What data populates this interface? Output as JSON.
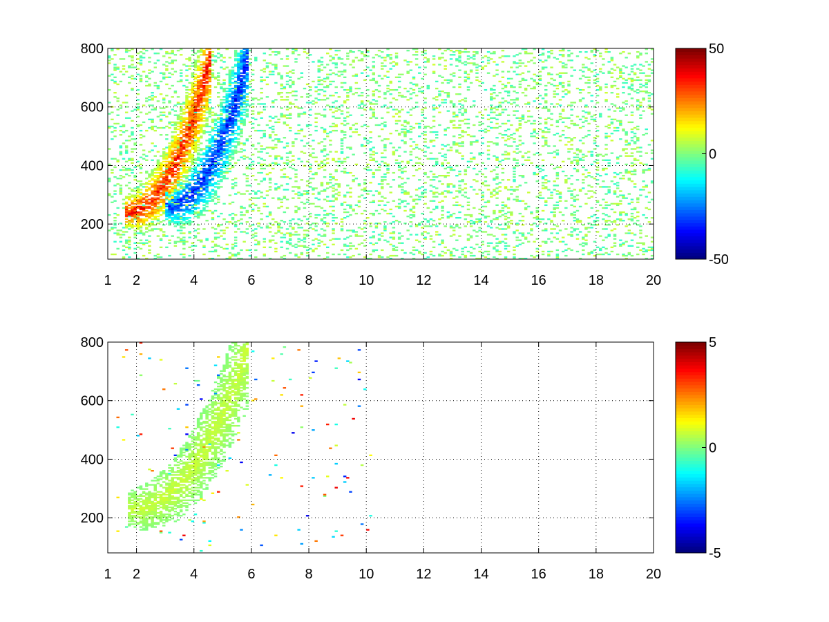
{
  "chart_data": [
    {
      "type": "heatmap",
      "title": "",
      "xlabel": "",
      "ylabel": "",
      "xlim": [
        1,
        20
      ],
      "ylim": [
        80,
        800
      ],
      "xticks": [
        1,
        2,
        4,
        6,
        8,
        10,
        12,
        14,
        16,
        18,
        20
      ],
      "xtick_labels": [
        "1",
        "2",
        "4",
        "6",
        "8",
        "10",
        "12",
        "14",
        "16",
        "18",
        "20"
      ],
      "yticks": [
        200,
        400,
        600,
        800
      ],
      "ytick_labels": [
        "200",
        "400",
        "600",
        "800"
      ],
      "grid": true,
      "colormap": "jet",
      "clim": [
        -50,
        50
      ],
      "colorbar_ticks": [
        50,
        0,
        -50
      ],
      "colorbar_tick_labels": [
        "50",
        "0",
        "-50"
      ],
      "features": [
        {
          "kind": "ridge",
          "value": 40,
          "x_range": [
            1.6,
            4.6
          ],
          "y_range": [
            240,
            780
          ],
          "note": "positive (red/orange) curved band"
        },
        {
          "kind": "ridge",
          "value": -40,
          "x_range": [
            3.0,
            5.9
          ],
          "y_range": [
            260,
            780
          ],
          "note": "negative (blue) curved band"
        },
        {
          "kind": "scatter_noise",
          "value_range": [
            -8,
            8
          ],
          "x_range": [
            1,
            20
          ],
          "y_range": [
            80,
            800
          ]
        }
      ]
    },
    {
      "type": "heatmap",
      "title": "",
      "xlabel": "",
      "ylabel": "",
      "xlim": [
        1,
        20
      ],
      "ylim": [
        80,
        800
      ],
      "xticks": [
        1,
        2,
        4,
        6,
        8,
        10,
        12,
        14,
        16,
        18,
        20
      ],
      "xtick_labels": [
        "1",
        "2",
        "4",
        "6",
        "8",
        "10",
        "12",
        "14",
        "16",
        "18",
        "20"
      ],
      "yticks": [
        200,
        400,
        600,
        800
      ],
      "ytick_labels": [
        "200",
        "400",
        "600",
        "800"
      ],
      "grid": true,
      "colormap": "jet",
      "clim": [
        -5,
        5
      ],
      "colorbar_ticks": [
        5,
        0,
        -5
      ],
      "colorbar_tick_labels": [
        "5",
        "0",
        "-5"
      ],
      "features": [
        {
          "kind": "ridge",
          "value": 0.8,
          "x_range": [
            1.7,
            5.9
          ],
          "y_range": [
            230,
            780
          ],
          "note": "mostly green/yellow curved band"
        },
        {
          "kind": "scatter_noise",
          "value_range": [
            -4,
            4
          ],
          "x_range": [
            1.3,
            10.2
          ],
          "y_range": [
            80,
            800
          ]
        }
      ]
    }
  ]
}
